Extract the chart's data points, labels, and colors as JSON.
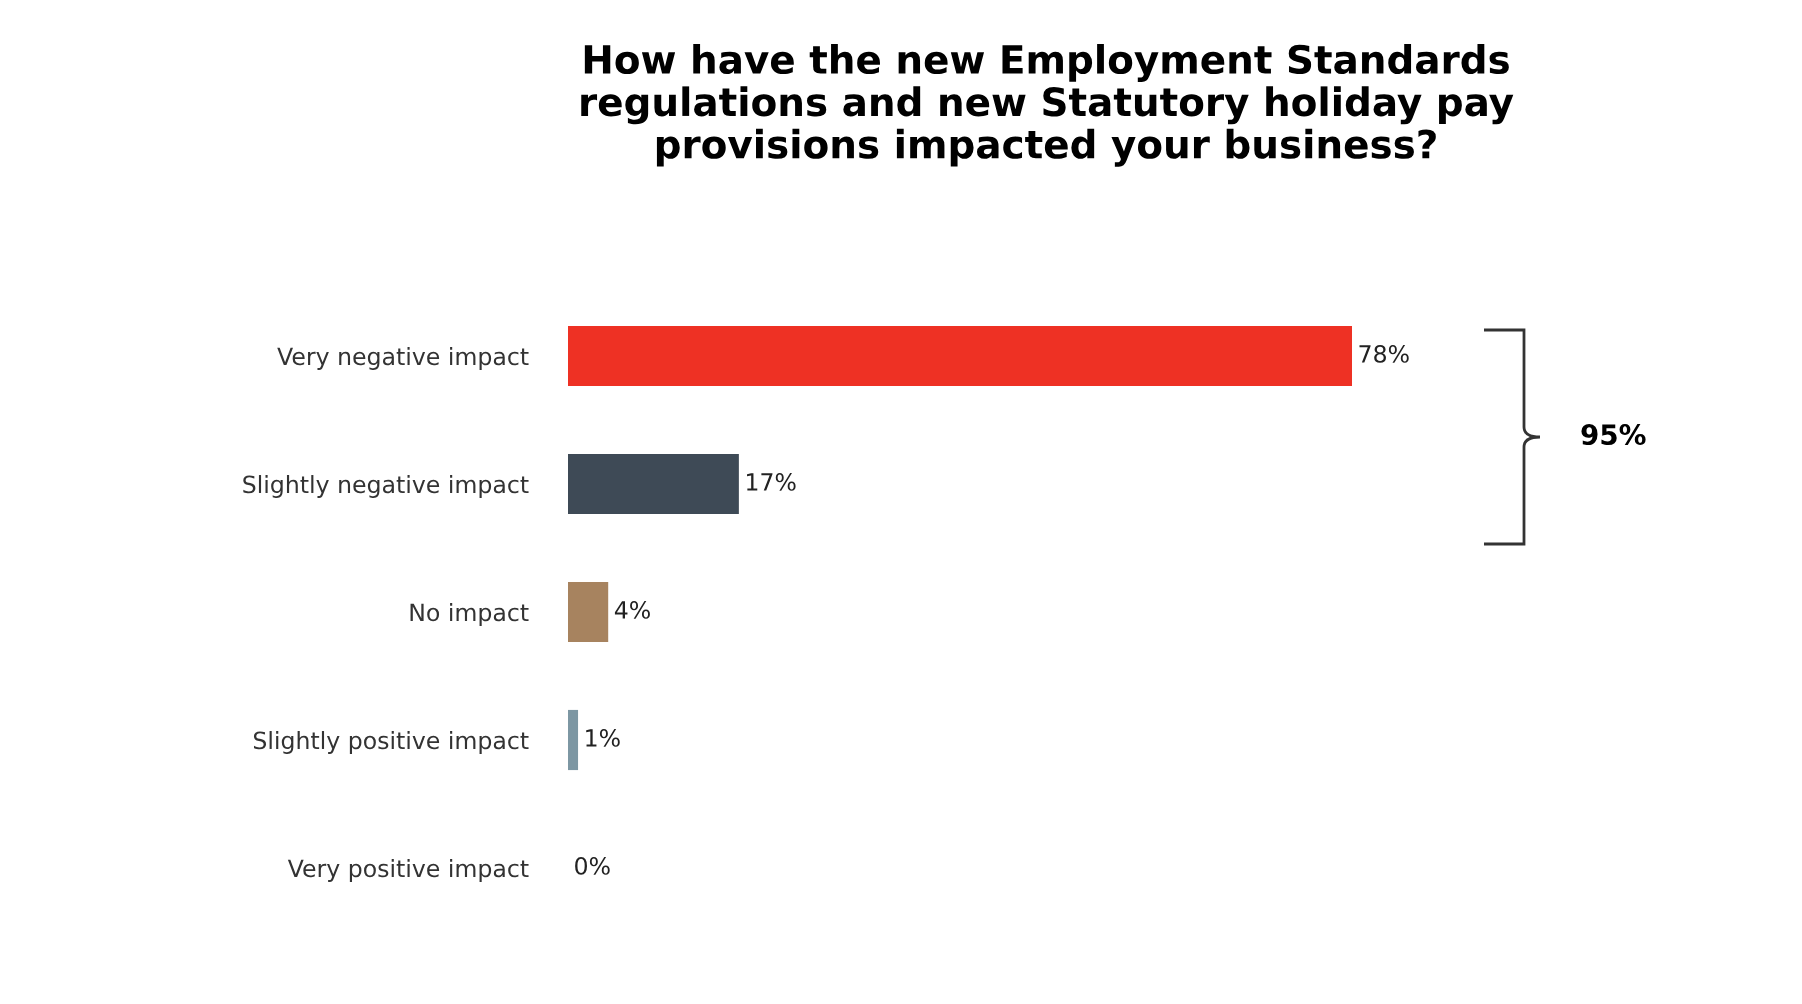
{
  "chart_data": {
    "type": "bar",
    "orientation": "horizontal",
    "title": "How have the new Employment Standards\nregulations and new Statutory holiday pay\nprovisions impacted your business?",
    "categories": [
      "Very negative impact",
      "Slightly negative impact",
      "No impact",
      "Slightly positive impact",
      "Very positive impact"
    ],
    "values": [
      78,
      17,
      4,
      1,
      0
    ],
    "colors": [
      "#ee3124",
      "#3e4a56",
      "#a7835f",
      "#7d97a3",
      "#111111"
    ],
    "value_labels": [
      "78%",
      "17%",
      "4%",
      "1%",
      "0%"
    ],
    "annotations": [
      "95%"
    ]
  }
}
